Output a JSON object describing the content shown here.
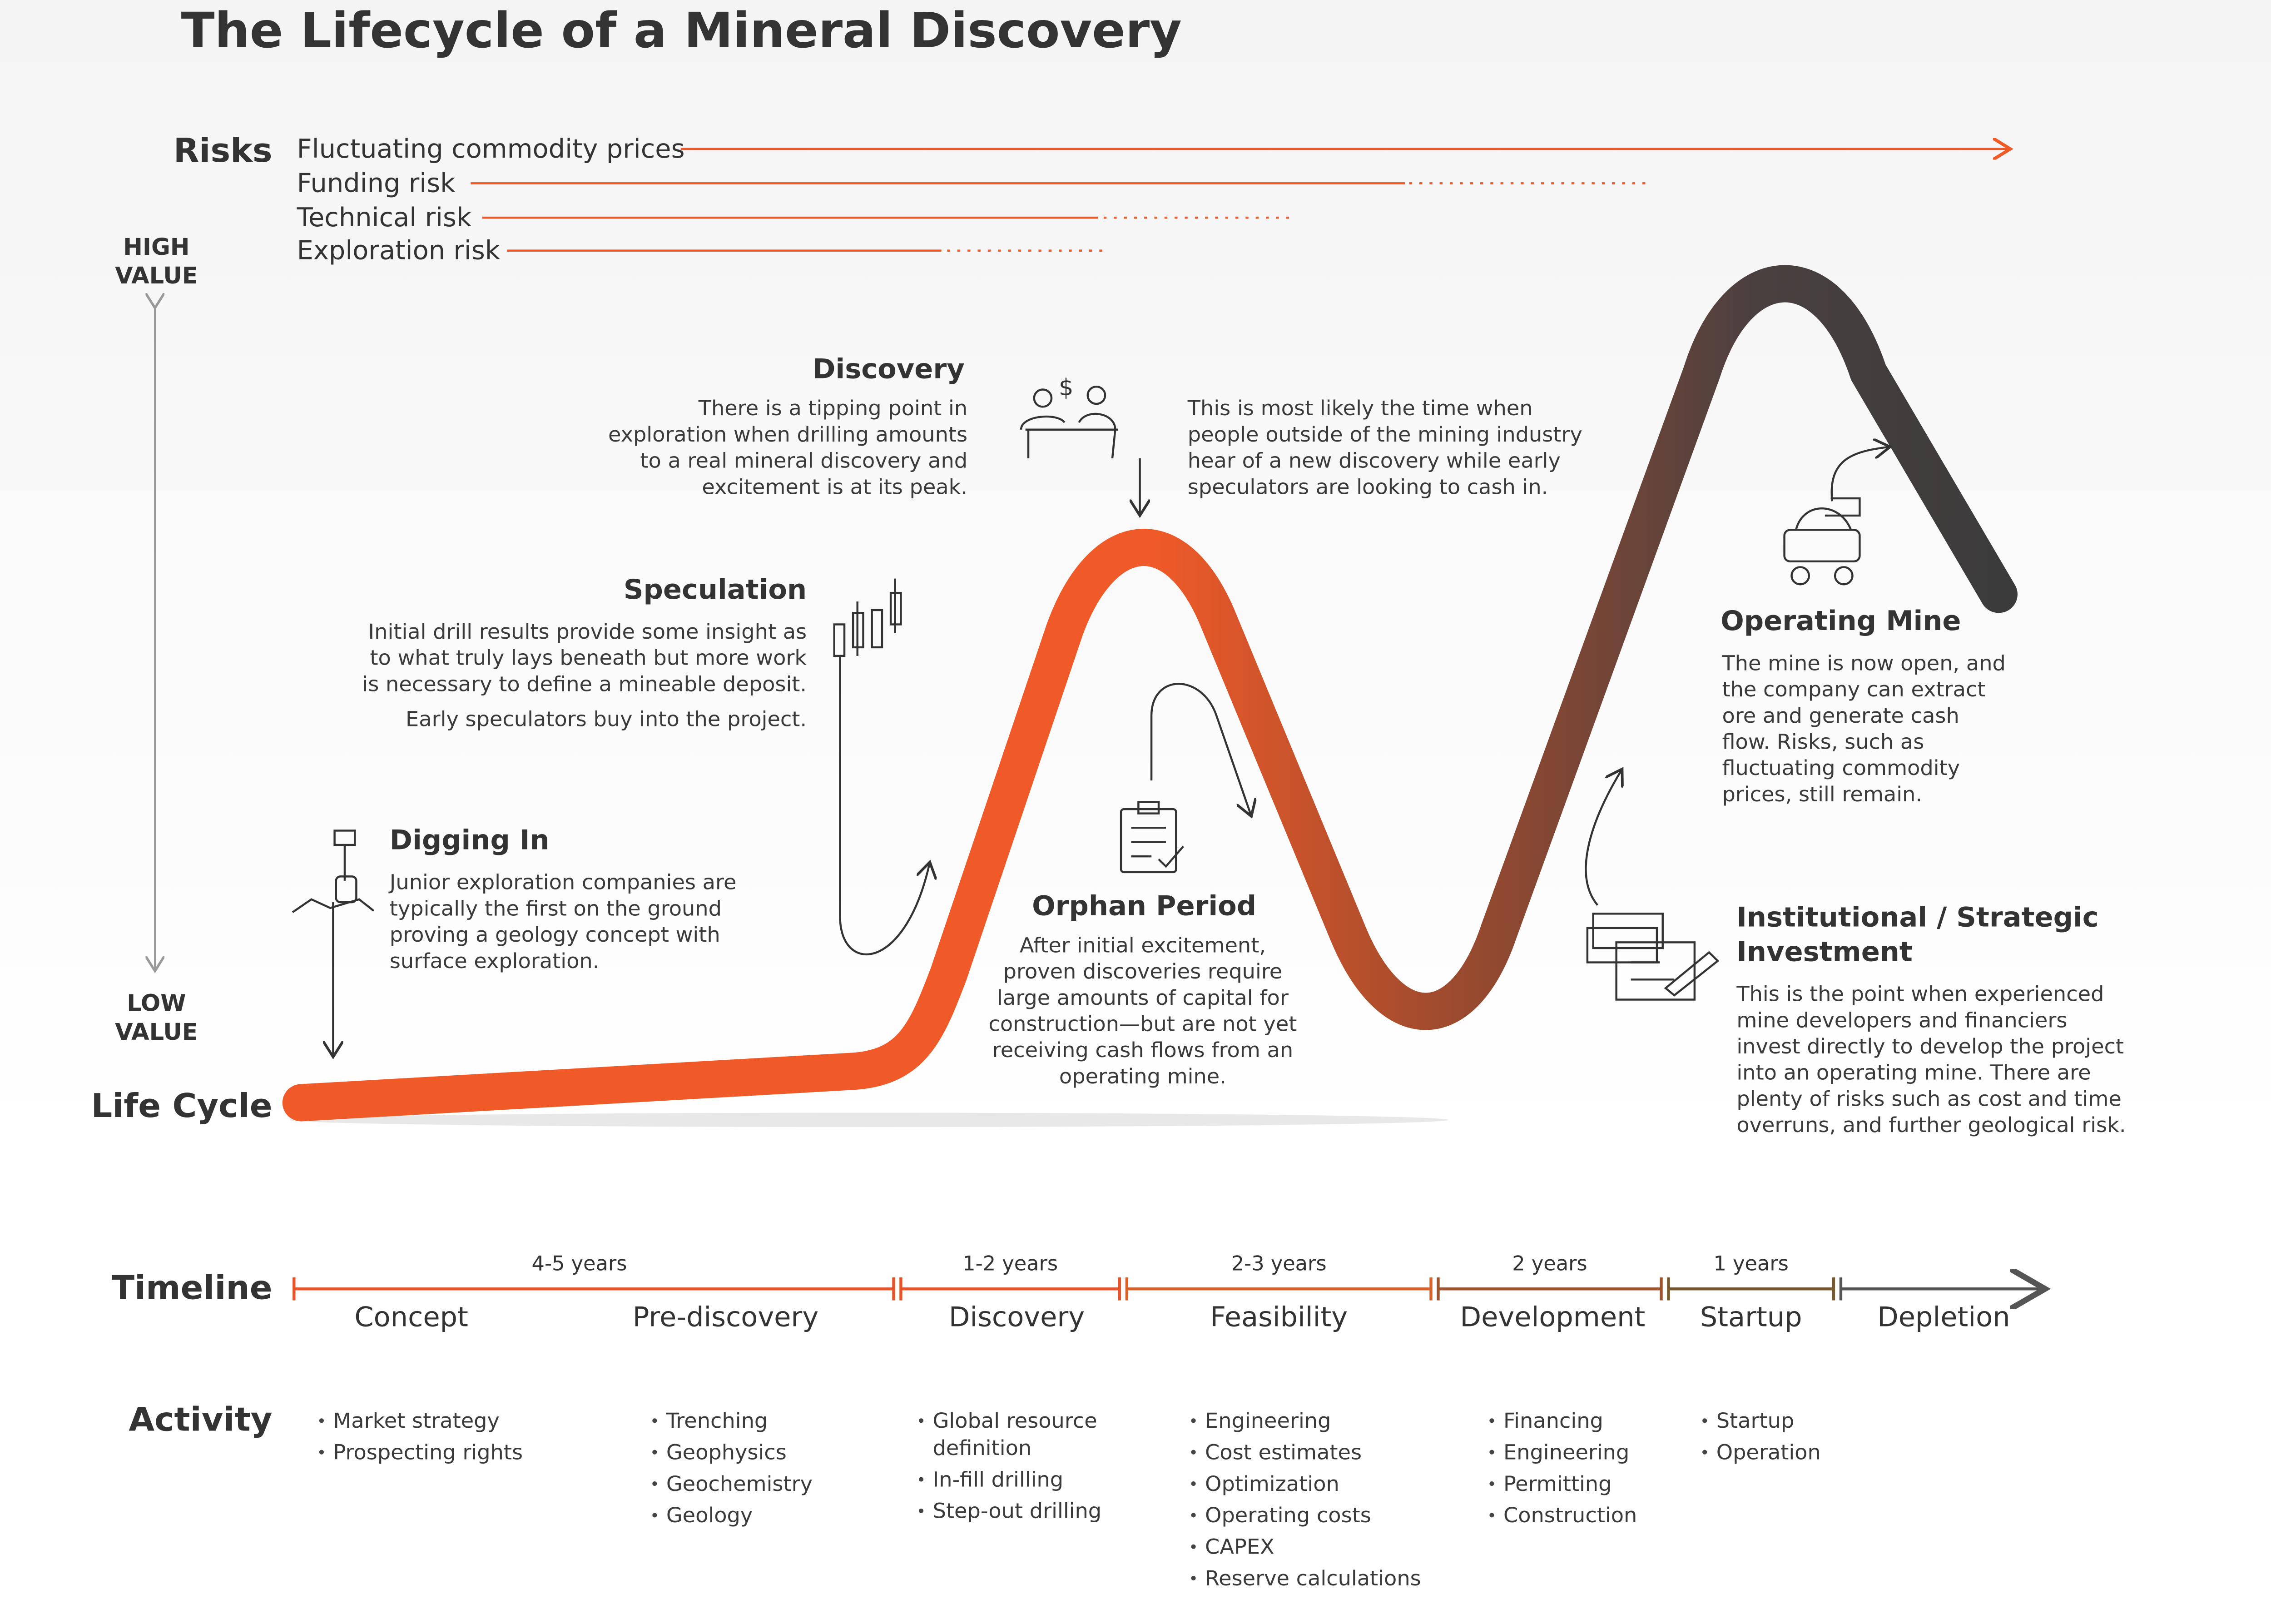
{
  "title": "The Lifecycle of a Mineral Discovery",
  "risks": {
    "label": "Risks",
    "items": [
      "Fluctuating commodity prices",
      "Funding risk",
      "Technical risk",
      "Exploration risk"
    ]
  },
  "value_axis": {
    "high": [
      "HIGH",
      "VALUE"
    ],
    "low": [
      "LOW",
      "VALUE"
    ]
  },
  "life_cycle_label": "Life Cycle",
  "stages": [
    {
      "title": [
        "Digging In"
      ],
      "text": [
        "Junior exploration companies are",
        "typically the first on the ground",
        "proving a geology concept with",
        "surface exploration."
      ]
    },
    {
      "title": [
        "Speculation"
      ],
      "text": [
        "Initial drill results provide some insight as",
        "to what truly lays beneath but more work",
        "is necessary to define a mineable deposit."
      ],
      "note": [
        "Early speculators buy into the project."
      ]
    },
    {
      "title": [
        "Discovery"
      ],
      "text": [
        "There is a tipping point in",
        "exploration when drilling amounts",
        "to a real mineral discovery and",
        "excitement is at its peak."
      ],
      "note": [
        "This is most likely the time when",
        "people outside of the mining industry",
        "hear of a new discovery while early",
        "speculators are looking to cash in."
      ]
    },
    {
      "title": [
        "Orphan Period"
      ],
      "text": [
        "After initial excitement,",
        "proven discoveries require",
        "large amounts of capital for",
        "construction—but are not yet",
        "receiving cash flows from an",
        "operating mine."
      ]
    },
    {
      "title": [
        "Operating Mine"
      ],
      "text": [
        "The mine is now open, and",
        "the company can extract",
        "ore and generate cash",
        "flow. Risks, such as",
        "fluctuating commodity",
        "prices, still remain."
      ]
    },
    {
      "title": [
        "Institutional / Strategic",
        "Investment"
      ],
      "text": [
        "This is the point when experienced",
        "mine developers and financiers",
        "invest directly to develop the project",
        "into an operating mine. There are",
        "plenty of risks such as cost and time",
        "overruns, and further geological risk."
      ]
    }
  ],
  "timeline": {
    "label": "Timeline",
    "durations": [
      "4-5 years",
      "1-2 years",
      "2-3 years",
      "2 years",
      "1 years"
    ],
    "phases": [
      "Concept",
      "Pre-discovery",
      "Discovery",
      "Feasibility",
      "Development",
      "Startup",
      "Depletion"
    ]
  },
  "activity": {
    "label": "Activity",
    "columns": [
      [
        "Market strategy",
        "Prospecting rights"
      ],
      [
        "Trenching",
        "Geophysics",
        "Geochemistry",
        "Geology"
      ],
      [
        [
          "Global resource",
          "definition"
        ],
        "In-fill drilling",
        "Step-out drilling"
      ],
      [
        "Engineering",
        "Cost estimates",
        "Optimization",
        "Operating costs",
        "CAPEX",
        "Reserve calculations"
      ],
      [
        "Financing",
        "Engineering",
        "Permitting",
        "Construction"
      ],
      [
        "Startup",
        "Operation"
      ]
    ]
  }
}
